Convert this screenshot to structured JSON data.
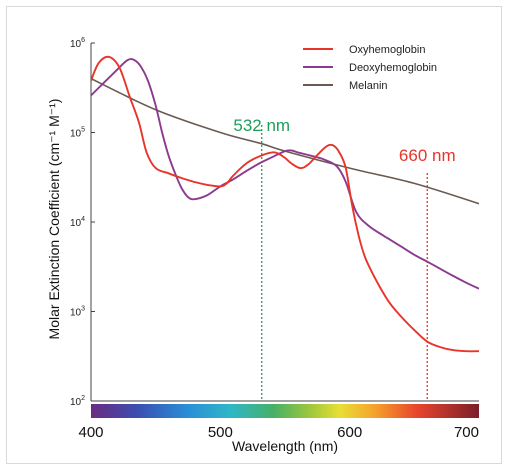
{
  "chart_data": {
    "type": "line",
    "title": "",
    "xlabel": "Wavelength (nm)",
    "ylabel": "Molar Extinction Coefficient (cm⁻¹ M⁻¹)",
    "xlim": [
      400,
      700
    ],
    "ylim": [
      100,
      1000000
    ],
    "yscale": "log",
    "x_ticks": [
      "400",
      "500",
      "600",
      "700"
    ],
    "y_ticks": [
      {
        "base": "10",
        "exp": "2",
        "value": 100
      },
      {
        "base": "10",
        "exp": "3",
        "value": 1000
      },
      {
        "base": "10",
        "exp": "4",
        "value": 10000
      },
      {
        "base": "10",
        "exp": "5",
        "value": 100000
      },
      {
        "base": "10",
        "exp": "6",
        "value": 1000000
      }
    ],
    "legend_position": "top-right",
    "grid": false,
    "colorbar": "visible spectrum",
    "series": [
      {
        "name": "Oxyhemoglobin",
        "color": "#e8352a",
        "points": [
          [
            400,
            380000
          ],
          [
            406,
            600000
          ],
          [
            414,
            700000
          ],
          [
            422,
            530000
          ],
          [
            430,
            250000
          ],
          [
            437,
            130000
          ],
          [
            443,
            60000
          ],
          [
            450,
            40000
          ],
          [
            460,
            35000
          ],
          [
            470,
            31000
          ],
          [
            480,
            28000
          ],
          [
            490,
            26000
          ],
          [
            500,
            25000
          ],
          [
            505,
            27000
          ],
          [
            510,
            33000
          ],
          [
            520,
            45000
          ],
          [
            530,
            54000
          ],
          [
            540,
            60000
          ],
          [
            545,
            58000
          ],
          [
            550,
            52000
          ],
          [
            555,
            45000
          ],
          [
            562,
            40000
          ],
          [
            568,
            44000
          ],
          [
            575,
            56000
          ],
          [
            582,
            70000
          ],
          [
            587,
            72000
          ],
          [
            592,
            60000
          ],
          [
            597,
            40000
          ],
          [
            602,
            15000
          ],
          [
            607,
            7000
          ],
          [
            612,
            4000
          ],
          [
            620,
            2300
          ],
          [
            630,
            1300
          ],
          [
            640,
            870
          ],
          [
            650,
            620
          ],
          [
            660,
            460
          ],
          [
            670,
            400
          ],
          [
            680,
            370
          ],
          [
            690,
            360
          ],
          [
            700,
            360
          ]
        ]
      },
      {
        "name": "Deoxyhemoglobin",
        "color": "#8b3a8f",
        "points": [
          [
            400,
            260000
          ],
          [
            410,
            360000
          ],
          [
            420,
            500000
          ],
          [
            428,
            640000
          ],
          [
            433,
            650000
          ],
          [
            438,
            560000
          ],
          [
            444,
            380000
          ],
          [
            450,
            200000
          ],
          [
            455,
            100000
          ],
          [
            460,
            55000
          ],
          [
            465,
            35000
          ],
          [
            470,
            24000
          ],
          [
            475,
            19000
          ],
          [
            480,
            18000
          ],
          [
            490,
            20000
          ],
          [
            500,
            25000
          ],
          [
            510,
            30000
          ],
          [
            520,
            37000
          ],
          [
            530,
            45000
          ],
          [
            540,
            53000
          ],
          [
            550,
            62000
          ],
          [
            555,
            63000
          ],
          [
            560,
            60000
          ],
          [
            570,
            55000
          ],
          [
            580,
            50000
          ],
          [
            590,
            42000
          ],
          [
            597,
            28000
          ],
          [
            605,
            13000
          ],
          [
            615,
            9000
          ],
          [
            630,
            6500
          ],
          [
            640,
            5300
          ],
          [
            650,
            4300
          ],
          [
            660,
            3600
          ],
          [
            670,
            3000
          ],
          [
            680,
            2500
          ],
          [
            690,
            2100
          ],
          [
            700,
            1800
          ]
        ]
      },
      {
        "name": "Melanin",
        "color": "#6b5a52",
        "points": [
          [
            400,
            400000
          ],
          [
            450,
            180000
          ],
          [
            500,
            100000
          ],
          [
            532,
            75000
          ],
          [
            550,
            62000
          ],
          [
            600,
            40000
          ],
          [
            650,
            27000
          ],
          [
            700,
            16000
          ]
        ]
      }
    ],
    "annotations": [
      {
        "label": "532 nm",
        "x": 532,
        "color": "#1f9e5a"
      },
      {
        "label": "660 nm",
        "x": 660,
        "color": "#e8352a"
      }
    ]
  }
}
